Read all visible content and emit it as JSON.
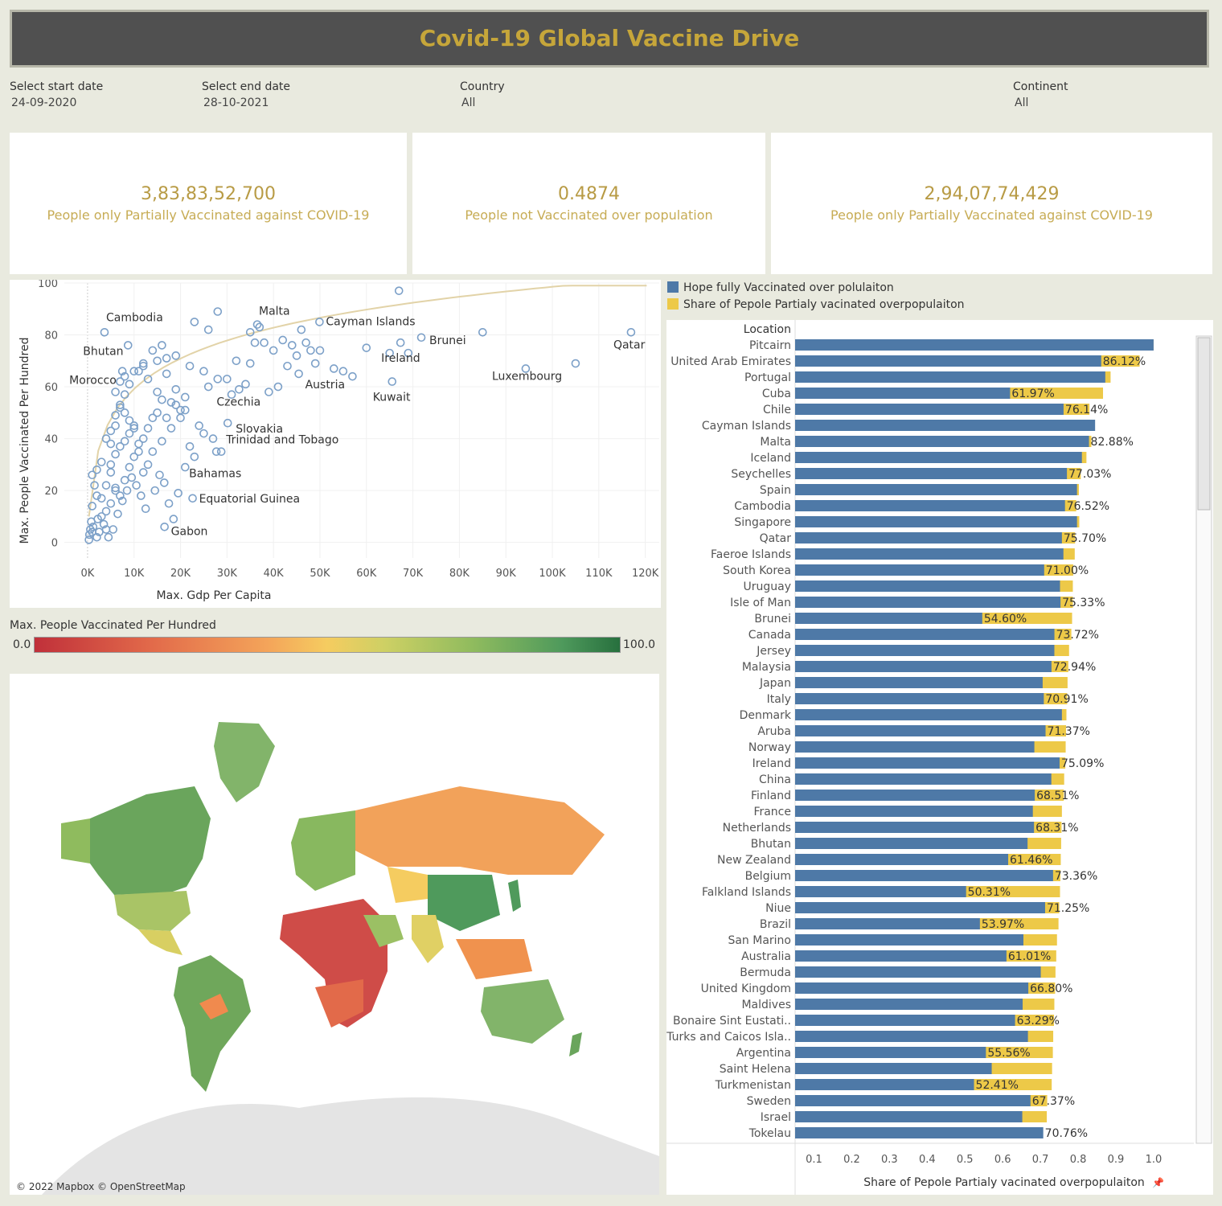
{
  "title": "Covid-19 Global Vaccine Drive",
  "filters": [
    {
      "label": "Select start date",
      "value": "24-09-2020"
    },
    {
      "label": "Select end date",
      "value": "28-10-2021"
    },
    {
      "label": "Country",
      "value": "All"
    },
    {
      "label": "Continent",
      "value": "All"
    }
  ],
  "kpis": [
    {
      "value": "3,83,83,52,700",
      "caption": "People only Partially Vaccinated against COVID-19"
    },
    {
      "value": "0.4874",
      "caption": "People not Vaccinated over population"
    },
    {
      "value": "2,94,07,74,429",
      "caption": "People only Partially Vaccinated against COVID-19"
    }
  ],
  "colors": {
    "accent": "#c6a63a",
    "blue": "#4e79a7",
    "yellow": "#edc948",
    "scatter": "#7ca0c8",
    "trend": "#e2d3a8"
  },
  "color_legend": {
    "title": "Max. People Vaccinated Per Hundred",
    "min": "0.0",
    "max": "100.0"
  },
  "map": {
    "credit": "© 2022 Mapbox © OpenStreetMap"
  },
  "chart_data": [
    {
      "type": "scatter",
      "xlabel": "Max. Gdp Per Capita",
      "ylabel": "Max. People Vaccinated Per Hundred",
      "xlim": [
        -5000,
        123000
      ],
      "ylim": [
        -6,
        100
      ],
      "xticks": [
        "0K",
        "10K",
        "20K",
        "30K",
        "40K",
        "50K",
        "60K",
        "70K",
        "80K",
        "90K",
        "100K",
        "110K",
        "120K"
      ],
      "yticks": [
        "0",
        "20",
        "40",
        "60",
        "80",
        "100"
      ],
      "labeled_points": [
        {
          "name": "Qatar",
          "x": 116936,
          "y": 81
        },
        {
          "name": "Luxembourg",
          "x": 94278,
          "y": 67
        },
        {
          "name": "Brunei",
          "x": 71809,
          "y": 79
        },
        {
          "name": "Ireland",
          "x": 67335,
          "y": 77
        },
        {
          "name": "Kuwait",
          "x": 65531,
          "y": 62
        },
        {
          "name": "Cayman Islands",
          "x": 49903,
          "y": 85
        },
        {
          "name": "Malta",
          "x": 36513,
          "y": 84
        },
        {
          "name": "Austria",
          "x": 45437,
          "y": 65
        },
        {
          "name": "Czechia",
          "x": 32606,
          "y": 59
        },
        {
          "name": "Slovakia",
          "x": 30155,
          "y": 46
        },
        {
          "name": "Trinidad and Tobago",
          "x": 28763,
          "y": 35
        },
        {
          "name": "Bahamas",
          "x": 27717,
          "y": 35
        },
        {
          "name": "Equatorial Guinea",
          "x": 22604,
          "y": 17
        },
        {
          "name": "Gabon",
          "x": 16562,
          "y": 6
        },
        {
          "name": "Cambodia",
          "x": 3645,
          "y": 81
        },
        {
          "name": "Bhutan",
          "x": 8709,
          "y": 76
        },
        {
          "name": "Morocco",
          "x": 7485,
          "y": 66
        }
      ],
      "points": [
        [
          67000,
          97
        ],
        [
          85000,
          81
        ],
        [
          105000,
          69
        ],
        [
          65000,
          73
        ],
        [
          69000,
          73
        ],
        [
          28000,
          89
        ],
        [
          23000,
          85
        ],
        [
          26000,
          82
        ],
        [
          35000,
          81
        ],
        [
          37000,
          83
        ],
        [
          38000,
          77
        ],
        [
          36000,
          77
        ],
        [
          42000,
          78
        ],
        [
          44000,
          76
        ],
        [
          46000,
          82
        ],
        [
          47000,
          77
        ],
        [
          48000,
          74
        ],
        [
          50000,
          74
        ],
        [
          45000,
          72
        ],
        [
          49000,
          69
        ],
        [
          53000,
          67
        ],
        [
          57000,
          64
        ],
        [
          55000,
          66
        ],
        [
          60000,
          75
        ],
        [
          35000,
          69
        ],
        [
          32000,
          70
        ],
        [
          30000,
          63
        ],
        [
          31000,
          57
        ],
        [
          39000,
          58
        ],
        [
          41000,
          60
        ],
        [
          43000,
          68
        ],
        [
          40000,
          74
        ],
        [
          34000,
          61
        ],
        [
          28000,
          63
        ],
        [
          26000,
          60
        ],
        [
          25000,
          66
        ],
        [
          22000,
          68
        ],
        [
          19000,
          72
        ],
        [
          17000,
          71
        ],
        [
          16000,
          76
        ],
        [
          14000,
          74
        ],
        [
          12000,
          68
        ],
        [
          11000,
          66
        ],
        [
          13000,
          63
        ],
        [
          15000,
          58
        ],
        [
          16000,
          55
        ],
        [
          18000,
          54
        ],
        [
          20000,
          48
        ],
        [
          21000,
          56
        ],
        [
          24000,
          45
        ],
        [
          25000,
          42
        ],
        [
          27000,
          40
        ],
        [
          22000,
          37
        ],
        [
          20000,
          51
        ],
        [
          18000,
          44
        ],
        [
          16000,
          39
        ],
        [
          14000,
          35
        ],
        [
          13000,
          30
        ],
        [
          12000,
          27
        ],
        [
          11000,
          38
        ],
        [
          10000,
          44
        ],
        [
          9000,
          47
        ],
        [
          8000,
          50
        ],
        [
          7000,
          52
        ],
        [
          6000,
          49
        ],
        [
          5000,
          43
        ],
        [
          4000,
          40
        ],
        [
          3000,
          31
        ],
        [
          2000,
          28
        ],
        [
          1500,
          22
        ],
        [
          1000,
          14
        ],
        [
          800,
          8
        ],
        [
          600,
          5
        ],
        [
          400,
          3
        ],
        [
          300,
          1
        ],
        [
          1200,
          6
        ],
        [
          2200,
          9
        ],
        [
          2500,
          4
        ],
        [
          3500,
          7
        ],
        [
          4500,
          2
        ],
        [
          5500,
          5
        ],
        [
          6500,
          11
        ],
        [
          7500,
          16
        ],
        [
          8500,
          20
        ],
        [
          9500,
          25
        ],
        [
          10500,
          22
        ],
        [
          11500,
          18
        ],
        [
          12500,
          13
        ],
        [
          14500,
          20
        ],
        [
          15500,
          26
        ],
        [
          16500,
          23
        ],
        [
          17500,
          15
        ],
        [
          18500,
          9
        ],
        [
          19500,
          19
        ],
        [
          21000,
          29
        ],
        [
          23000,
          33
        ],
        [
          6000,
          58
        ],
        [
          7000,
          62
        ],
        [
          8000,
          64
        ],
        [
          9000,
          61
        ],
        [
          10000,
          66
        ],
        [
          12000,
          69
        ],
        [
          15000,
          70
        ],
        [
          17000,
          65
        ],
        [
          19000,
          59
        ],
        [
          21000,
          51
        ],
        [
          5000,
          27
        ],
        [
          6000,
          21
        ],
        [
          7000,
          18
        ],
        [
          8000,
          24
        ],
        [
          9000,
          29
        ],
        [
          10000,
          33
        ],
        [
          11000,
          35
        ],
        [
          12000,
          40
        ],
        [
          13000,
          44
        ],
        [
          14000,
          48
        ],
        [
          15000,
          50
        ],
        [
          4000,
          12
        ],
        [
          5000,
          15
        ],
        [
          6000,
          20
        ],
        [
          3000,
          10
        ],
        [
          2000,
          18
        ],
        [
          1000,
          26
        ],
        [
          3000,
          17
        ],
        [
          4000,
          22
        ],
        [
          5000,
          30
        ],
        [
          6000,
          34
        ],
        [
          7000,
          37
        ],
        [
          8000,
          39
        ],
        [
          9000,
          42
        ],
        [
          10000,
          45
        ],
        [
          4000,
          5
        ],
        [
          2000,
          2
        ],
        [
          1000,
          4
        ],
        [
          7000,
          53
        ],
        [
          8000,
          57
        ],
        [
          6000,
          45
        ],
        [
          5000,
          38
        ],
        [
          19000,
          53
        ],
        [
          17000,
          48
        ]
      ]
    },
    {
      "type": "bar",
      "stacked": "overlap",
      "xlabel": "Share of Pepole Partialy vacinated overpopulaiton",
      "category_header": "Location",
      "xlim": [
        0.05,
        1.03
      ],
      "xticks": [
        "0.1",
        "0.2",
        "0.3",
        "0.4",
        "0.5",
        "0.6",
        "0.7",
        "0.8",
        "0.9",
        "1.0"
      ],
      "series": [
        {
          "name": "Hope fully Vaccinated over polulaiton",
          "color": "#4e79a7"
        },
        {
          "name": "Share of Pepole Partialy vacinated overpopulaiton",
          "color": "#edc948"
        }
      ],
      "categories": [
        "Pitcairn",
        "United Arab Emirates",
        "Portugal",
        "Cuba",
        "Chile",
        "Cayman Islands",
        "Malta",
        "Iceland",
        "Seychelles",
        "Spain",
        "Cambodia",
        "Singapore",
        "Qatar",
        "Faeroe Islands",
        "South Korea",
        "Uruguay",
        "Isle of Man",
        "Brunei",
        "Canada",
        "Jersey",
        "Malaysia",
        "Japan",
        "Italy",
        "Denmark",
        "Aruba",
        "Norway",
        "Ireland",
        "China",
        "Finland",
        "France",
        "Netherlands",
        "Bhutan",
        "New Zealand",
        "Belgium",
        "Falkland Islands",
        "Niue",
        "Brazil",
        "San Marino",
        "Australia",
        "Bermuda",
        "United Kingdom",
        "Maldives",
        "Bonaire Sint Eustati..",
        "Turks and Caicos Isla..",
        "Argentina",
        "Saint Helena",
        "Turkmenistan",
        "Sweden",
        "Israel",
        "Tokelau"
      ],
      "full": [
        1.0,
        0.8612,
        0.872,
        0.6197,
        0.7614,
        0.845,
        0.8288,
        0.81,
        0.7703,
        0.797,
        0.7652,
        0.797,
        0.757,
        0.761,
        0.71,
        0.752,
        0.7533,
        0.546,
        0.7372,
        0.737,
        0.7294,
        0.706,
        0.7091,
        0.757,
        0.7137,
        0.684,
        0.7509,
        0.729,
        0.6851,
        0.68,
        0.6831,
        0.666,
        0.6146,
        0.7336,
        0.5031,
        0.7125,
        0.5397,
        0.655,
        0.6101,
        0.701,
        0.668,
        0.653,
        0.6329,
        0.667,
        0.5556,
        0.571,
        0.5241,
        0.6737,
        0.652,
        0.7076
      ],
      "partial": [
        1.0,
        0.963,
        0.886,
        0.866,
        0.83,
        0.84,
        0.835,
        0.822,
        0.807,
        0.802,
        0.795,
        0.803,
        0.792,
        0.791,
        0.787,
        0.786,
        0.786,
        0.784,
        0.782,
        0.776,
        0.774,
        0.772,
        0.771,
        0.769,
        0.768,
        0.767,
        0.766,
        0.763,
        0.762,
        0.757,
        0.756,
        0.755,
        0.754,
        0.753,
        0.752,
        0.75,
        0.748,
        0.744,
        0.742,
        0.74,
        0.739,
        0.737,
        0.736,
        0.734,
        0.733,
        0.731,
        0.73,
        0.718,
        0.717,
        0.7
      ],
      "labels": [
        "",
        "86.12%",
        "",
        "61.97%",
        "76.14%",
        "",
        "82.88%",
        "",
        "77.03%",
        "",
        "76.52%",
        "",
        "75.70%",
        "",
        "71.00%",
        "",
        "75.33%",
        "54.60%",
        "73.72%",
        "",
        "72.94%",
        "",
        "70.91%",
        "",
        "71.37%",
        "",
        "75.09%",
        "",
        "68.51%",
        "",
        "68.31%",
        "",
        "61.46%",
        "73.36%",
        "50.31%",
        "71.25%",
        "53.97%",
        "",
        "61.01%",
        "",
        "66.80%",
        "",
        "63.29%",
        "",
        "55.56%",
        "",
        "52.41%",
        "67.37%",
        "",
        "70.76%"
      ]
    }
  ]
}
